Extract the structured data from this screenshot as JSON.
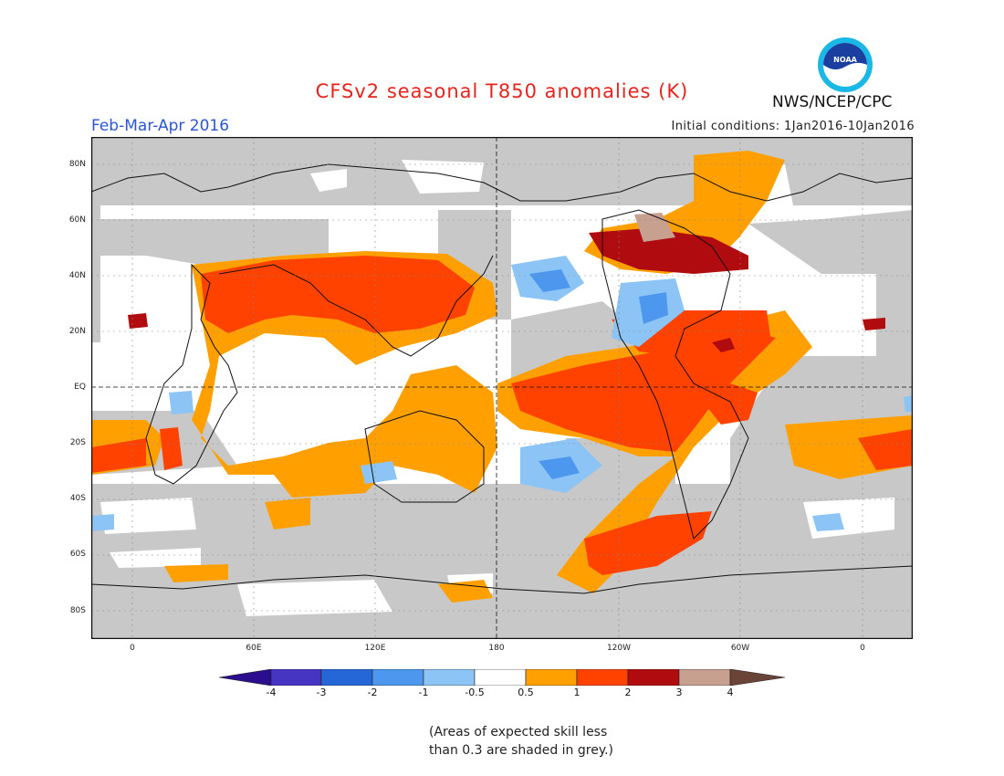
{
  "header": {
    "title": "CFSv2 seasonal T850 anomalies (K)",
    "period": "Feb-Mar-Apr 2016",
    "agency": "NWS/NCEP/CPC",
    "initial_conditions": "Initial conditions: 1Jan2016-10Jan2016",
    "logo_text": "NOAA"
  },
  "axes": {
    "lat_labels": [
      "80N",
      "60N",
      "40N",
      "20N",
      "EQ",
      "20S",
      "40S",
      "60S",
      "80S"
    ],
    "lon_labels": [
      "0",
      "60E",
      "120E",
      "180",
      "120W",
      "60W",
      "0"
    ]
  },
  "colorbar": {
    "labels": [
      "-4",
      "-3",
      "-2",
      "-1",
      "-0.5",
      "0.5",
      "1",
      "2",
      "3",
      "4"
    ],
    "colors": [
      "#2a0e8e",
      "#4535c2",
      "#2567d6",
      "#4d98ee",
      "#8cc5f5",
      "#ffffff",
      "#ffa000",
      "#ff4200",
      "#b00c10",
      "#c8a090",
      "#6b4438"
    ]
  },
  "note": {
    "line1": "(Areas of expected skill less",
    "line2": "than 0.3 are shaded in grey.)"
  },
  "colors": {
    "grey_mask": "#c8c8c8",
    "coast": "#111111"
  }
}
